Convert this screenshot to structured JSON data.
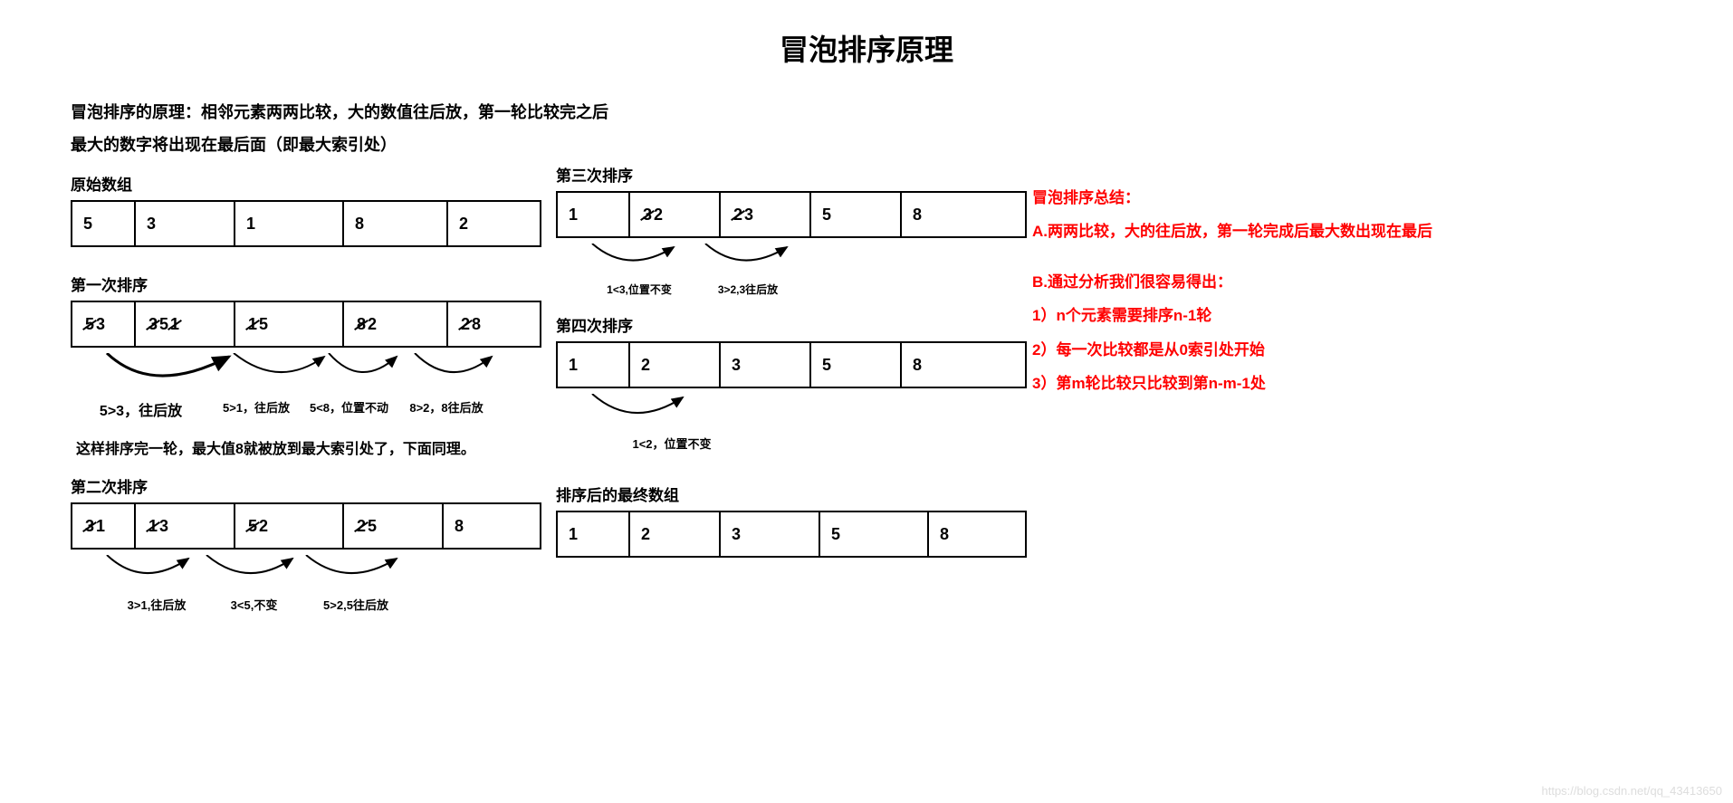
{
  "title": "冒泡排序原理",
  "principle_line1": "冒泡排序的原理：相邻元素两两比较，大的数值往后放，第一轮比较完之后",
  "principle_line2": "最大的数字将出现在最后面（即最大索引处）",
  "colors": {
    "text": "#000000",
    "summary": "#ff0000",
    "border": "#000000",
    "background": "#ffffff"
  },
  "left": {
    "orig": {
      "label": "原始数组",
      "cells": [
        "5",
        "3",
        "1",
        "8",
        "2"
      ],
      "widths": [
        70,
        110,
        120,
        115,
        65
      ]
    },
    "pass1": {
      "label": "第一次排序",
      "cells": [
        {
          "strike": "5",
          "val": " 3"
        },
        {
          "strike": "3",
          "val": " 5 ",
          "strike2": "1"
        },
        {
          "strike": "1",
          "val": " 5"
        },
        {
          "strike": "8",
          "val": " 2"
        },
        {
          "strike": "2",
          "val": " 8"
        }
      ],
      "widths": [
        70,
        110,
        120,
        115,
        65
      ],
      "arrow_labels": [
        "5>3，往后放",
        "5>1，往后放",
        "5<8，位置不动",
        "8>2，8往后放"
      ]
    },
    "between_note": "这样排序完一轮，最大值8就被放到最大索引处了，下面同理。",
    "pass2": {
      "label": "第二次排序",
      "cells": [
        {
          "strike": "3",
          "val": " 1"
        },
        {
          "strike": "1",
          "val": " 3"
        },
        {
          "strike": "5",
          "val": " 2"
        },
        {
          "strike": "2",
          "val": "  5"
        },
        {
          "plain": "8"
        }
      ],
      "widths": [
        70,
        110,
        120,
        110,
        70
      ],
      "arrow_labels": [
        "3>1,往后放",
        "3<5,不变",
        "5>2,5往后放"
      ]
    }
  },
  "mid": {
    "pass3": {
      "label": "第三次排序",
      "cells": [
        {
          "plain": "1"
        },
        {
          "strike": "3",
          "val": "  2"
        },
        {
          "strike": "2",
          "val": "  3"
        },
        {
          "plain": "5"
        },
        {
          "plain": "8"
        }
      ],
      "widths": [
        80,
        100,
        100,
        100,
        100
      ],
      "arrow_labels": [
        "1<3,位置不变",
        "3>2,3往后放"
      ]
    },
    "pass4": {
      "label": "第四次排序",
      "cells": [
        {
          "plain": "1"
        },
        {
          "plain": "2"
        },
        {
          "plain": "3"
        },
        {
          "plain": "5"
        },
        {
          "plain": "8"
        }
      ],
      "widths": [
        80,
        100,
        100,
        100,
        100
      ],
      "arrow_label": "1<2，位置不变"
    },
    "final": {
      "label": "排序后的最终数组",
      "cells": [
        "1",
        "2",
        "3",
        "5",
        "8"
      ],
      "widths": [
        80,
        100,
        110,
        120,
        80
      ]
    }
  },
  "summary": {
    "heading": "冒泡排序总结：",
    "lineA": "A.两两比较，大的往后放，第一轮完成后最大数出现在最后",
    "lineB_head": "B.通过分析我们很容易得出：",
    "b1": "1）n个元素需要排序n-1轮",
    "b2": "2）每一次比较都是从0索引处开始",
    "b3": "3）第m轮比较只比较到第n-m-1处"
  },
  "watermark": "https://blog.csdn.net/qq_43413650"
}
